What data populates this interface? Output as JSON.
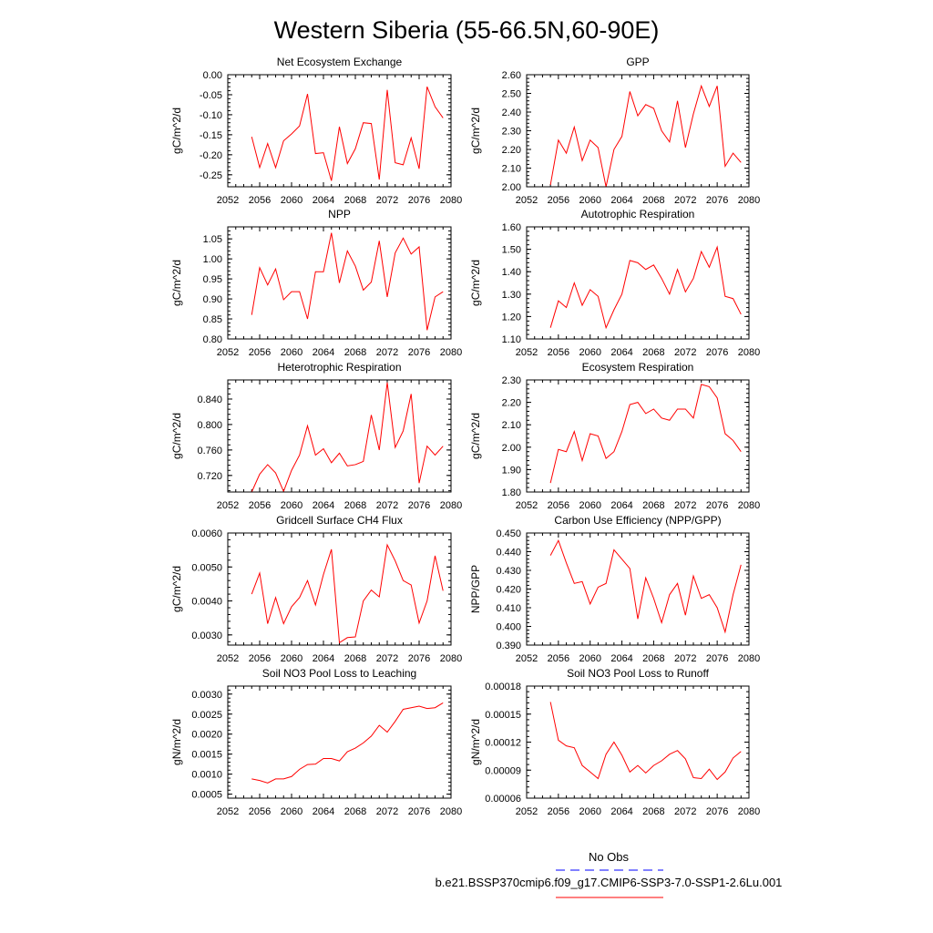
{
  "page_title": "Western Siberia (55-66.5N,60-90E)",
  "legend": {
    "entries": [
      {
        "label": "No Obs",
        "color": "#0000ff",
        "dash": true
      },
      {
        "label": "b.e21.BSSP370cmip6.f09_g17.CMIP6-SSP3-7.0-SSP1-2.6Lu.001",
        "color": "#ff0000",
        "dash": false
      }
    ]
  },
  "chart_data": [
    {
      "type": "line",
      "title": "Net Ecosystem Exchange",
      "ylabel": "gC/m^2/d",
      "xlabel": "",
      "xlim": [
        2052,
        2080
      ],
      "ylim": [
        -0.28,
        0.0
      ],
      "xticks": [
        "2052",
        "2056",
        "2060",
        "2064",
        "2068",
        "2072",
        "2076",
        "2080"
      ],
      "yticks": [
        "-0.25",
        "-0.20",
        "-0.15",
        "-0.10",
        "-0.05",
        "0.00"
      ],
      "x": [
        2055,
        2056,
        2057,
        2058,
        2059,
        2060,
        2061,
        2062,
        2063,
        2064,
        2065,
        2066,
        2067,
        2068,
        2069,
        2070,
        2071,
        2072,
        2073,
        2074,
        2075,
        2076,
        2077,
        2078,
        2079
      ],
      "series": [
        {
          "color": "#ff0000",
          "values": [
            -0.155,
            -0.232,
            -0.172,
            -0.232,
            -0.165,
            -0.148,
            -0.128,
            -0.048,
            -0.197,
            -0.195,
            -0.265,
            -0.13,
            -0.222,
            -0.185,
            -0.12,
            -0.122,
            -0.262,
            -0.038,
            -0.22,
            -0.225,
            -0.158,
            -0.235,
            -0.03,
            -0.08,
            -0.108
          ]
        }
      ]
    },
    {
      "type": "line",
      "title": "GPP",
      "ylabel": "gC/m^2/d",
      "xlabel": "",
      "xlim": [
        2052,
        2080
      ],
      "ylim": [
        2.0,
        2.6
      ],
      "xticks": [
        "2052",
        "2056",
        "2060",
        "2064",
        "2068",
        "2072",
        "2076",
        "2080"
      ],
      "yticks": [
        "2.00",
        "2.10",
        "2.20",
        "2.30",
        "2.40",
        "2.50",
        "2.60"
      ],
      "x": [
        2055,
        2056,
        2057,
        2058,
        2059,
        2060,
        2061,
        2062,
        2063,
        2064,
        2065,
        2066,
        2067,
        2068,
        2069,
        2070,
        2071,
        2072,
        2073,
        2074,
        2075,
        2076,
        2077,
        2078,
        2079
      ],
      "series": [
        {
          "color": "#ff0000",
          "values": [
            2.01,
            2.25,
            2.18,
            2.32,
            2.14,
            2.25,
            2.21,
            2.0,
            2.2,
            2.27,
            2.51,
            2.38,
            2.44,
            2.42,
            2.3,
            2.24,
            2.46,
            2.21,
            2.39,
            2.54,
            2.43,
            2.54,
            2.11,
            2.18,
            2.13
          ]
        }
      ]
    },
    {
      "type": "line",
      "title": "NPP",
      "ylabel": "gC/m^2/d",
      "xlabel": "",
      "xlim": [
        2052,
        2080
      ],
      "ylim": [
        0.8,
        1.08
      ],
      "xticks": [
        "2052",
        "2056",
        "2060",
        "2064",
        "2068",
        "2072",
        "2076",
        "2080"
      ],
      "yticks": [
        "0.80",
        "0.85",
        "0.90",
        "0.95",
        "1.00",
        "1.05"
      ],
      "x": [
        2055,
        2056,
        2057,
        2058,
        2059,
        2060,
        2061,
        2062,
        2063,
        2064,
        2065,
        2066,
        2067,
        2068,
        2069,
        2070,
        2071,
        2072,
        2073,
        2074,
        2075,
        2076,
        2077,
        2078,
        2079
      ],
      "series": [
        {
          "color": "#ff0000",
          "values": [
            0.86,
            0.978,
            0.935,
            0.975,
            0.898,
            0.918,
            0.918,
            0.85,
            0.968,
            0.968,
            1.065,
            0.94,
            1.02,
            0.982,
            0.922,
            0.942,
            1.045,
            0.905,
            1.015,
            1.052,
            1.012,
            1.03,
            0.822,
            0.905,
            0.918
          ]
        }
      ]
    },
    {
      "type": "line",
      "title": "Autotrophic Respiration",
      "ylabel": "gC/m^2/d",
      "xlabel": "",
      "xlim": [
        2052,
        2080
      ],
      "ylim": [
        1.1,
        1.6
      ],
      "xticks": [
        "2052",
        "2056",
        "2060",
        "2064",
        "2068",
        "2072",
        "2076",
        "2080"
      ],
      "yticks": [
        "1.10",
        "1.20",
        "1.30",
        "1.40",
        "1.50",
        "1.60"
      ],
      "x": [
        2055,
        2056,
        2057,
        2058,
        2059,
        2060,
        2061,
        2062,
        2063,
        2064,
        2065,
        2066,
        2067,
        2068,
        2069,
        2070,
        2071,
        2072,
        2073,
        2074,
        2075,
        2076,
        2077,
        2078,
        2079
      ],
      "series": [
        {
          "color": "#ff0000",
          "values": [
            1.15,
            1.27,
            1.24,
            1.35,
            1.25,
            1.32,
            1.29,
            1.15,
            1.23,
            1.3,
            1.45,
            1.44,
            1.41,
            1.43,
            1.37,
            1.3,
            1.41,
            1.31,
            1.37,
            1.49,
            1.42,
            1.51,
            1.29,
            1.28,
            1.21
          ]
        }
      ]
    },
    {
      "type": "line",
      "title": "Heterotrophic Respiration",
      "ylabel": "gC/m^2/d",
      "xlabel": "",
      "xlim": [
        2052,
        2080
      ],
      "ylim": [
        0.694,
        0.87
      ],
      "xticks": [
        "2052",
        "2056",
        "2060",
        "2064",
        "2068",
        "2072",
        "2076",
        "2080"
      ],
      "yticks": [
        "0.720",
        "0.760",
        "0.800",
        "0.840"
      ],
      "x": [
        2055,
        2056,
        2057,
        2058,
        2059,
        2060,
        2061,
        2062,
        2063,
        2064,
        2065,
        2066,
        2067,
        2068,
        2069,
        2070,
        2071,
        2072,
        2073,
        2074,
        2075,
        2076,
        2077,
        2078,
        2079
      ],
      "series": [
        {
          "color": "#ff0000",
          "values": [
            0.694,
            0.722,
            0.737,
            0.724,
            0.695,
            0.728,
            0.752,
            0.798,
            0.752,
            0.762,
            0.74,
            0.755,
            0.735,
            0.737,
            0.742,
            0.815,
            0.76,
            0.866,
            0.764,
            0.79,
            0.848,
            0.708,
            0.766,
            0.752,
            0.766
          ]
        }
      ]
    },
    {
      "type": "line",
      "title": "Ecosystem Respiration",
      "ylabel": "gC/m^2/d",
      "xlabel": "",
      "xlim": [
        2052,
        2080
      ],
      "ylim": [
        1.8,
        2.3
      ],
      "xticks": [
        "2052",
        "2056",
        "2060",
        "2064",
        "2068",
        "2072",
        "2076",
        "2080"
      ],
      "yticks": [
        "1.80",
        "1.90",
        "2.00",
        "2.10",
        "2.20",
        "2.30"
      ],
      "x": [
        2055,
        2056,
        2057,
        2058,
        2059,
        2060,
        2061,
        2062,
        2063,
        2064,
        2065,
        2066,
        2067,
        2068,
        2069,
        2070,
        2071,
        2072,
        2073,
        2074,
        2075,
        2076,
        2077,
        2078,
        2079
      ],
      "series": [
        {
          "color": "#ff0000",
          "values": [
            1.84,
            1.99,
            1.98,
            2.07,
            1.94,
            2.06,
            2.05,
            1.95,
            1.98,
            2.07,
            2.19,
            2.2,
            2.15,
            2.17,
            2.13,
            2.12,
            2.17,
            2.17,
            2.13,
            2.28,
            2.27,
            2.22,
            2.06,
            2.03,
            1.98
          ]
        }
      ]
    },
    {
      "type": "line",
      "title": "Gridcell Surface CH4 Flux",
      "ylabel": "gC/m^2/d",
      "xlabel": "",
      "xlim": [
        2052,
        2080
      ],
      "ylim": [
        0.0027,
        0.006
      ],
      "xticks": [
        "2052",
        "2056",
        "2060",
        "2064",
        "2068",
        "2072",
        "2076",
        "2080"
      ],
      "yticks": [
        "0.0030",
        "0.0040",
        "0.0050",
        "0.0060"
      ],
      "x": [
        2055,
        2056,
        2057,
        2058,
        2059,
        2060,
        2061,
        2062,
        2063,
        2064,
        2065,
        2066,
        2067,
        2068,
        2069,
        2070,
        2071,
        2072,
        2073,
        2074,
        2075,
        2076,
        2077,
        2078,
        2079
      ],
      "series": [
        {
          "color": "#ff0000",
          "values": [
            0.0042,
            0.00482,
            0.00333,
            0.0041,
            0.00333,
            0.00383,
            0.0041,
            0.0046,
            0.00388,
            0.00478,
            0.00552,
            0.00277,
            0.00292,
            0.00294,
            0.004,
            0.00432,
            0.00412,
            0.00565,
            0.00518,
            0.0046,
            0.00447,
            0.00335,
            0.004,
            0.00533,
            0.0043
          ]
        }
      ]
    },
    {
      "type": "line",
      "title": "Carbon Use Efficiency (NPP/GPP)",
      "ylabel": "NPP/GPP",
      "xlabel": "",
      "xlim": [
        2052,
        2080
      ],
      "ylim": [
        0.39,
        0.45
      ],
      "xticks": [
        "2052",
        "2056",
        "2060",
        "2064",
        "2068",
        "2072",
        "2076",
        "2080"
      ],
      "yticks": [
        "0.390",
        "0.400",
        "0.410",
        "0.420",
        "0.430",
        "0.440",
        "0.450"
      ],
      "x": [
        2055,
        2056,
        2057,
        2058,
        2059,
        2060,
        2061,
        2062,
        2063,
        2064,
        2065,
        2066,
        2067,
        2068,
        2069,
        2070,
        2071,
        2072,
        2073,
        2074,
        2075,
        2076,
        2077,
        2078,
        2079
      ],
      "series": [
        {
          "color": "#ff0000",
          "values": [
            0.438,
            0.446,
            0.434,
            0.423,
            0.424,
            0.412,
            0.421,
            0.423,
            0.441,
            0.436,
            0.431,
            0.404,
            0.426,
            0.415,
            0.402,
            0.417,
            0.423,
            0.406,
            0.427,
            0.415,
            0.417,
            0.41,
            0.397,
            0.417,
            0.433
          ]
        }
      ]
    },
    {
      "type": "line",
      "title": "Soil NO3 Pool Loss to Leaching",
      "ylabel": "gN/m^2/d",
      "xlabel": "",
      "xlim": [
        2052,
        2080
      ],
      "ylim": [
        0.0004,
        0.0032
      ],
      "xticks": [
        "2052",
        "2056",
        "2060",
        "2064",
        "2068",
        "2072",
        "2076",
        "2080"
      ],
      "yticks": [
        "0.0005",
        "0.0010",
        "0.0015",
        "0.0020",
        "0.0025",
        "0.0030"
      ],
      "x": [
        2055,
        2056,
        2057,
        2058,
        2059,
        2060,
        2061,
        2062,
        2063,
        2064,
        2065,
        2066,
        2067,
        2068,
        2069,
        2070,
        2071,
        2072,
        2073,
        2074,
        2075,
        2076,
        2077,
        2078,
        2079
      ],
      "series": [
        {
          "color": "#ff0000",
          "values": [
            0.00088,
            0.00084,
            0.00078,
            0.00088,
            0.00088,
            0.00094,
            0.00112,
            0.00124,
            0.00125,
            0.00139,
            0.00139,
            0.00133,
            0.00156,
            0.00165,
            0.00178,
            0.00195,
            0.00222,
            0.00205,
            0.00232,
            0.00262,
            0.00266,
            0.0027,
            0.00264,
            0.00266,
            0.00278
          ]
        }
      ]
    },
    {
      "type": "line",
      "title": "Soil NO3 Pool Loss to Runoff",
      "ylabel": "gN/m^2/d",
      "xlabel": "",
      "xlim": [
        2052,
        2080
      ],
      "ylim": [
        6e-05,
        0.00018
      ],
      "xticks": [
        "2052",
        "2056",
        "2060",
        "2064",
        "2068",
        "2072",
        "2076",
        "2080"
      ],
      "yticks": [
        "0.00006",
        "0.00009",
        "0.00012",
        "0.00015",
        "0.00018"
      ],
      "x": [
        2055,
        2056,
        2057,
        2058,
        2059,
        2060,
        2061,
        2062,
        2063,
        2064,
        2065,
        2066,
        2067,
        2068,
        2069,
        2070,
        2071,
        2072,
        2073,
        2074,
        2075,
        2076,
        2077,
        2078,
        2079
      ],
      "series": [
        {
          "color": "#ff0000",
          "values": [
            0.000163,
            0.000122,
            0.000116,
            0.000114,
            9.5e-05,
            8.8e-05,
            8.1e-05,
            0.000107,
            0.00012,
            0.000106,
            8.8e-05,
            9.5e-05,
            8.7e-05,
            9.5e-05,
            0.0001,
            0.000107,
            0.000111,
            0.000102,
            8.2e-05,
            8.1e-05,
            9.1e-05,
            8e-05,
            8.8e-05,
            0.000103,
            0.00011
          ]
        }
      ]
    }
  ]
}
